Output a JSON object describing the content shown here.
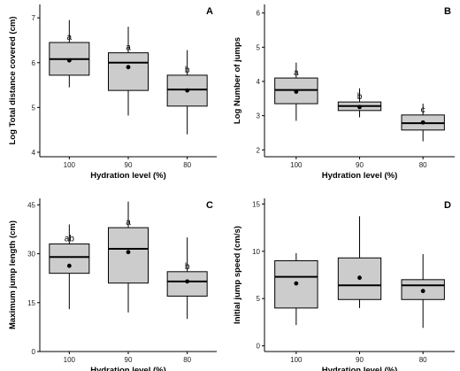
{
  "chart_data": [
    {
      "type": "box",
      "panel": "A",
      "xlabel": "Hydration level (%)",
      "ylabel": "Log Total distance covered (cm)",
      "categories": [
        "100",
        "90",
        "80"
      ],
      "ylim": [
        3.9,
        7.3
      ],
      "yticks": [
        4,
        5,
        6,
        7
      ],
      "boxes": [
        {
          "category": "100",
          "min": 5.45,
          "q1": 5.72,
          "median": 6.08,
          "q3": 6.45,
          "max": 6.95,
          "mean": 6.05,
          "label": "a"
        },
        {
          "category": "90",
          "min": 4.82,
          "q1": 5.38,
          "median": 6.0,
          "q3": 6.22,
          "max": 6.8,
          "mean": 5.9,
          "label": "a"
        },
        {
          "category": "80",
          "min": 4.4,
          "q1": 5.03,
          "median": 5.4,
          "q3": 5.72,
          "max": 6.28,
          "mean": 5.38,
          "label": "b"
        }
      ]
    },
    {
      "type": "box",
      "panel": "B",
      "xlabel": "Hydration level (%)",
      "ylabel": "Log Number of jumps",
      "categories": [
        "100",
        "90",
        "80"
      ],
      "ylim": [
        1.8,
        6.25
      ],
      "yticks": [
        2,
        3,
        4,
        5,
        6
      ],
      "boxes": [
        {
          "category": "100",
          "min": 2.85,
          "q1": 3.35,
          "median": 3.75,
          "q3": 4.1,
          "max": 4.55,
          "mean": 3.7,
          "label": "a"
        },
        {
          "category": "90",
          "min": 2.95,
          "q1": 3.15,
          "median": 3.28,
          "q3": 3.4,
          "max": 3.8,
          "mean": 3.25,
          "label": "b"
        },
        {
          "category": "80",
          "min": 2.25,
          "q1": 2.58,
          "median": 2.78,
          "q3": 3.02,
          "max": 3.35,
          "mean": 2.8,
          "label": "c"
        }
      ]
    },
    {
      "type": "box",
      "panel": "C",
      "xlabel": "Hydration level (%)",
      "ylabel": "Maximum jump length (cm)",
      "categories": [
        "100",
        "90",
        "80"
      ],
      "ylim": [
        0,
        47
      ],
      "yticks": [
        0,
        15,
        30,
        45
      ],
      "boxes": [
        {
          "category": "100",
          "min": 13,
          "q1": 24,
          "median": 29,
          "q3": 33,
          "max": 39,
          "mean": 26.3,
          "label": "ab"
        },
        {
          "category": "90",
          "min": 12,
          "q1": 21,
          "median": 31.5,
          "q3": 38,
          "max": 46,
          "mean": 30.5,
          "label": "a"
        },
        {
          "category": "80",
          "min": 10,
          "q1": 17,
          "median": 21.5,
          "q3": 24.5,
          "max": 35,
          "mean": 21.5,
          "label": "b"
        }
      ]
    },
    {
      "type": "box",
      "panel": "D",
      "xlabel": "Hydration level (%)",
      "ylabel": "Initial jump speed (cm/s)",
      "categories": [
        "100",
        "90",
        "80"
      ],
      "ylim": [
        -0.6,
        15.6
      ],
      "yticks": [
        0,
        5,
        10,
        15
      ],
      "boxes": [
        {
          "category": "100",
          "min": 2.2,
          "q1": 4.0,
          "median": 7.3,
          "q3": 9.0,
          "max": 9.8,
          "mean": 6.6,
          "label": ""
        },
        {
          "category": "90",
          "min": 4.0,
          "q1": 4.9,
          "median": 6.4,
          "q3": 9.3,
          "max": 13.7,
          "mean": 7.2,
          "label": ""
        },
        {
          "category": "80",
          "min": 1.9,
          "q1": 4.9,
          "median": 6.4,
          "q3": 7.0,
          "max": 9.7,
          "mean": 5.8,
          "label": ""
        }
      ]
    }
  ]
}
